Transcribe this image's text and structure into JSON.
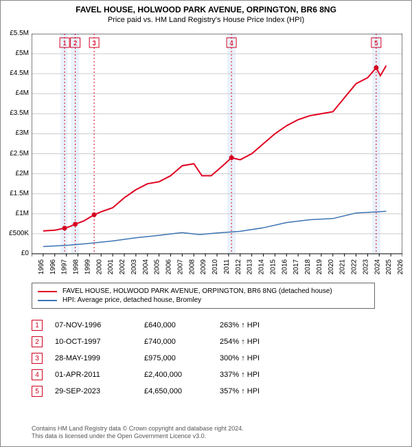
{
  "title": "FAVEL HOUSE, HOLWOOD PARK AVENUE, ORPINGTON, BR6 8NG",
  "subtitle": "Price paid vs. HM Land Registry's House Price Index (HPI)",
  "chart": {
    "type": "line",
    "background_color": "#ffffff",
    "plot_border_color": "#000000",
    "grid_color": "#cccccc",
    "x": {
      "min": 1994,
      "max": 2026,
      "ticks": [
        1994,
        1995,
        1996,
        1997,
        1998,
        1999,
        2000,
        2001,
        2002,
        2003,
        2004,
        2005,
        2006,
        2007,
        2008,
        2009,
        2010,
        2011,
        2012,
        2013,
        2014,
        2015,
        2016,
        2017,
        2018,
        2019,
        2020,
        2021,
        2022,
        2023,
        2024,
        2025,
        2026
      ],
      "label_fontsize": 10,
      "label_rotation": -90
    },
    "y": {
      "min": 0,
      "max": 5500000,
      "ticks": [
        0,
        500000,
        1000000,
        1500000,
        2000000,
        2500000,
        3000000,
        3500000,
        4000000,
        4500000,
        5000000,
        5500000
      ],
      "tick_labels": [
        "£0",
        "£500K",
        "£1M",
        "£1.5M",
        "£2M",
        "£2.5M",
        "£3M",
        "£3.5M",
        "£4M",
        "£4.5M",
        "£5M",
        "£5.5M"
      ],
      "label_fontsize": 10
    },
    "span_bands": [
      {
        "from": 1996.5,
        "to": 1997.1,
        "fill": "#eaf2fb"
      },
      {
        "from": 1997.4,
        "to": 1998.1,
        "fill": "#eaf2fb"
      },
      {
        "from": 2010.9,
        "to": 2011.6,
        "fill": "#eaf2fb"
      },
      {
        "from": 2023.4,
        "to": 2024.1,
        "fill": "#eaf2fb"
      }
    ],
    "sale_markers": [
      {
        "n": "1",
        "x": 1996.85,
        "y": 640000,
        "line_color": "#d00020"
      },
      {
        "n": "2",
        "x": 1997.77,
        "y": 740000,
        "line_color": "#d00020"
      },
      {
        "n": "3",
        "x": 1999.4,
        "y": 975000,
        "line_color": "#d00020"
      },
      {
        "n": "4",
        "x": 2011.25,
        "y": 2400000,
        "line_color": "#d00020"
      },
      {
        "n": "5",
        "x": 2023.74,
        "y": 4650000,
        "line_color": "#d00020"
      }
    ],
    "series": [
      {
        "name": "FAVEL HOUSE, HOLWOOD PARK AVENUE, ORPINGTON, BR6 8NG (detached house)",
        "color": "#e00020",
        "line_width": 2,
        "points": [
          [
            1995.0,
            570000
          ],
          [
            1996.0,
            590000
          ],
          [
            1996.85,
            640000
          ],
          [
            1997.3,
            680000
          ],
          [
            1997.77,
            740000
          ],
          [
            1998.5,
            820000
          ],
          [
            1999.4,
            975000
          ],
          [
            2000.0,
            1050000
          ],
          [
            2001.0,
            1150000
          ],
          [
            2002.0,
            1400000
          ],
          [
            2003.0,
            1600000
          ],
          [
            2004.0,
            1750000
          ],
          [
            2005.0,
            1800000
          ],
          [
            2006.0,
            1950000
          ],
          [
            2007.0,
            2200000
          ],
          [
            2008.0,
            2250000
          ],
          [
            2008.7,
            1950000
          ],
          [
            2009.5,
            1950000
          ],
          [
            2010.5,
            2200000
          ],
          [
            2011.25,
            2400000
          ],
          [
            2012.0,
            2350000
          ],
          [
            2013.0,
            2500000
          ],
          [
            2014.0,
            2750000
          ],
          [
            2015.0,
            3000000
          ],
          [
            2016.0,
            3200000
          ],
          [
            2017.0,
            3350000
          ],
          [
            2018.0,
            3450000
          ],
          [
            2019.0,
            3500000
          ],
          [
            2020.0,
            3550000
          ],
          [
            2021.0,
            3900000
          ],
          [
            2022.0,
            4250000
          ],
          [
            2023.0,
            4400000
          ],
          [
            2023.74,
            4650000
          ],
          [
            2024.1,
            4450000
          ],
          [
            2024.6,
            4700000
          ]
        ]
      },
      {
        "name": "HPI: Average price, detached house, Bromley",
        "color": "#3b74b3",
        "line_width": 1.5,
        "points": [
          [
            1995.0,
            180000
          ],
          [
            1997.0,
            210000
          ],
          [
            1999.0,
            260000
          ],
          [
            2001.0,
            320000
          ],
          [
            2003.0,
            400000
          ],
          [
            2005.0,
            460000
          ],
          [
            2007.0,
            530000
          ],
          [
            2008.5,
            480000
          ],
          [
            2010.0,
            520000
          ],
          [
            2012.0,
            560000
          ],
          [
            2014.0,
            650000
          ],
          [
            2016.0,
            780000
          ],
          [
            2018.0,
            850000
          ],
          [
            2020.0,
            880000
          ],
          [
            2022.0,
            1020000
          ],
          [
            2024.0,
            1050000
          ],
          [
            2024.6,
            1060000
          ]
        ]
      }
    ]
  },
  "legend": {
    "items": [
      {
        "color": "#e00020",
        "label": "FAVEL HOUSE, HOLWOOD PARK AVENUE, ORPINGTON, BR6 8NG (detached house)"
      },
      {
        "color": "#3b74b3",
        "label": "HPI: Average price, detached house, Bromley"
      }
    ]
  },
  "sales_table": {
    "hpi_arrow": "↑ HPI",
    "rows": [
      {
        "n": "1",
        "date": "07-NOV-1996",
        "price": "£640,000",
        "hpi_pct": "263%"
      },
      {
        "n": "2",
        "date": "10-OCT-1997",
        "price": "£740,000",
        "hpi_pct": "254%"
      },
      {
        "n": "3",
        "date": "28-MAY-1999",
        "price": "£975,000",
        "hpi_pct": "300%"
      },
      {
        "n": "4",
        "date": "01-APR-2011",
        "price": "£2,400,000",
        "hpi_pct": "337%"
      },
      {
        "n": "5",
        "date": "29-SEP-2023",
        "price": "£4,650,000",
        "hpi_pct": "357%"
      }
    ]
  },
  "footer": {
    "line1": "Contains HM Land Registry data © Crown copyright and database right 2024.",
    "line2": "This data is licensed under the Open Government Licence v3.0."
  }
}
